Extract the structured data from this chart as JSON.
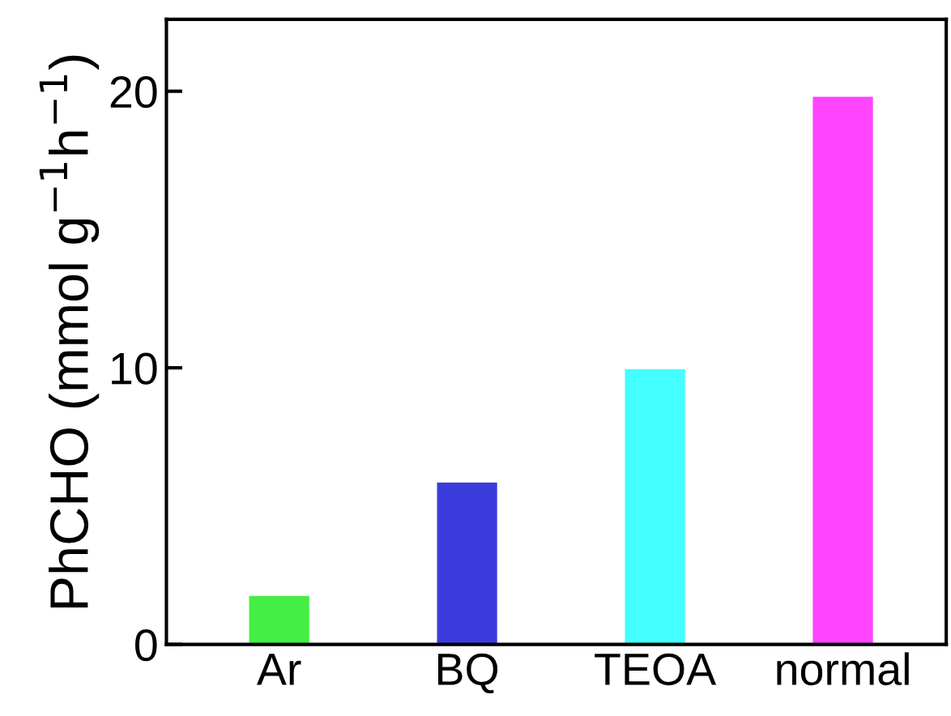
{
  "chart_data": {
    "type": "bar",
    "ylabel": "PhCHO (mmol g$^{−1}$h$^{−1}$)",
    "categories": [
      "Ar",
      "BQ",
      "TEOA",
      "normal"
    ],
    "values": [
      1.75,
      5.85,
      9.95,
      19.8
    ],
    "colors": [
      "#44ee44",
      "#3c3cdd",
      "#44ffff",
      "#ff44ff"
    ],
    "ylim": [
      0,
      22.6
    ],
    "yticks": [
      0,
      10,
      20
    ],
    "grid": false
  }
}
